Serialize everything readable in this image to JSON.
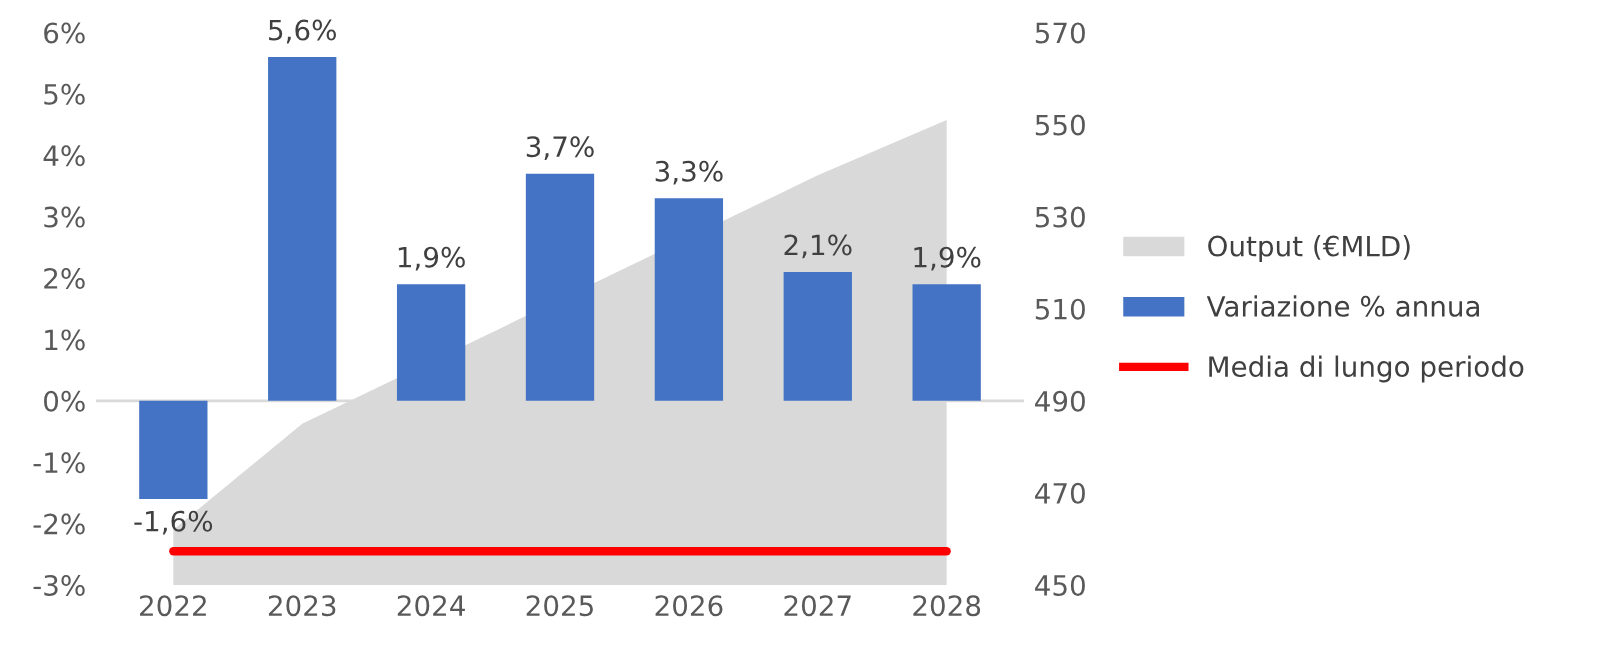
{
  "chart_data": {
    "type": "bar",
    "categories": [
      "2022",
      "2023",
      "2024",
      "2025",
      "2026",
      "2027",
      "2028"
    ],
    "series": [
      {
        "name": "Output (€MLD)",
        "type": "area",
        "axis": "y2",
        "color": "#d9d9d9",
        "values": [
          462,
          485,
          null,
          null,
          null,
          539,
          551
        ]
      },
      {
        "name": "Variazione % annua",
        "color": "#4472c4",
        "values": [
          -1.6,
          5.6,
          1.9,
          3.7,
          3.3,
          2.1,
          1.9
        ],
        "value_labels": [
          "-1,6%",
          "5,6%",
          "1,9%",
          "3,7%",
          "3,3%",
          "2,1%",
          "1,9%"
        ]
      },
      {
        "name": "Media di lungo periodo",
        "type": "line",
        "color": "#ff0000",
        "line_style": "solid",
        "values": [
          -2.45,
          -2.45,
          -2.45,
          -2.45,
          -2.45,
          -2.45,
          -2.45
        ]
      }
    ],
    "ylim": [
      -3,
      6
    ],
    "yticks": [
      {
        "value": -3,
        "label": "-3%"
      },
      {
        "value": -2,
        "label": "-2%"
      },
      {
        "value": -1,
        "label": "-1%"
      },
      {
        "value": 0,
        "label": "0%"
      },
      {
        "value": 1,
        "label": "1%"
      },
      {
        "value": 2,
        "label": "2%"
      },
      {
        "value": 3,
        "label": "3%"
      },
      {
        "value": 4,
        "label": "4%"
      },
      {
        "value": 5,
        "label": "5%"
      },
      {
        "value": 6,
        "label": "6%"
      }
    ],
    "y2lim": [
      450,
      570
    ],
    "y2ticks": [
      450,
      470,
      490,
      510,
      530,
      550,
      570
    ],
    "grid": false,
    "legend": "right",
    "marker": "none"
  }
}
